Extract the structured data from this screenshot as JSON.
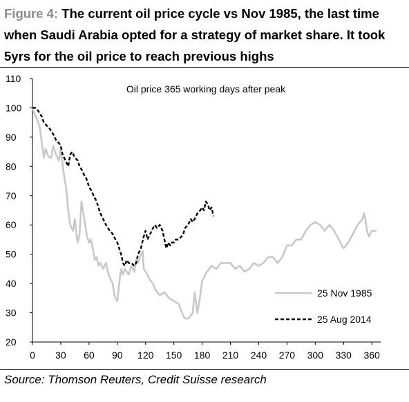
{
  "figure": {
    "label": "Figure 4:",
    "title": "The current oil price cycle vs Nov 1985, the last time when Saudi Arabia opted for a strategy of market share. It took 5yrs for the oil price to reach previous highs",
    "source": "Source: Thomson Reuters, Credit Suisse research"
  },
  "colors": {
    "series_1985": "#c8c8c8",
    "series_2014": "#000000",
    "title_label": "#8c8c8c"
  },
  "chart_data": {
    "type": "line",
    "title": "Oil price 365 working days after peak",
    "xlim": [
      0,
      365
    ],
    "ylim": [
      20,
      110
    ],
    "x_ticks": [
      0,
      30,
      60,
      90,
      120,
      150,
      180,
      210,
      240,
      270,
      300,
      330,
      360
    ],
    "y_ticks": [
      20,
      30,
      40,
      50,
      60,
      70,
      80,
      90,
      100,
      110
    ],
    "grid": false,
    "legend_position": "bottom-right",
    "series": [
      {
        "name": "25 Nov 1985",
        "style": "solid",
        "x": [
          0,
          2,
          5,
          8,
          10,
          12,
          14,
          16,
          18,
          20,
          22,
          25,
          28,
          30,
          33,
          36,
          38,
          40,
          43,
          45,
          47,
          48,
          50,
          52,
          55,
          57,
          58,
          60,
          62,
          64,
          66,
          68,
          70,
          72,
          75,
          78,
          80,
          82,
          85,
          87,
          88,
          90,
          92,
          94,
          96,
          98,
          100,
          102,
          105,
          108,
          110,
          112,
          115,
          117,
          118,
          120,
          122,
          125,
          128,
          130,
          135,
          140,
          145,
          150,
          155,
          160,
          162,
          165,
          168,
          170,
          172,
          175,
          178,
          180,
          182,
          185,
          190,
          195,
          200,
          205,
          210,
          215,
          220,
          225,
          230,
          235,
          240,
          245,
          250,
          255,
          260,
          265,
          270,
          275,
          280,
          285,
          290,
          295,
          300,
          305,
          310,
          315,
          320,
          325,
          330,
          335,
          340,
          345,
          350,
          352,
          355,
          357,
          360,
          365
        ],
        "y": [
          100,
          98,
          96,
          93,
          88,
          83,
          86,
          84,
          83,
          83,
          87,
          84,
          82,
          86,
          78,
          72,
          65,
          60,
          58,
          62,
          56,
          54,
          57,
          68,
          62,
          58,
          56,
          54,
          55,
          52,
          48,
          49,
          46,
          47,
          45,
          47,
          44,
          42,
          40,
          36,
          35,
          34,
          40,
          45,
          43,
          45,
          44,
          43,
          46,
          44,
          48,
          47,
          50,
          51,
          45,
          44,
          43,
          41,
          40,
          38,
          36,
          37,
          35,
          34,
          33,
          29,
          28,
          28,
          29,
          30,
          37,
          30,
          36,
          41,
          42,
          44,
          46,
          45,
          47,
          47,
          47,
          45,
          46,
          44,
          45,
          47,
          46,
          47,
          49,
          49,
          47,
          49,
          53,
          53,
          55,
          55,
          58,
          60,
          61,
          60,
          58,
          60,
          58,
          55,
          52,
          54,
          57,
          60,
          62,
          64,
          58,
          56,
          58,
          58
        ]
      },
      {
        "name": "25 Aug 2014",
        "style": "dashed",
        "x": [
          0,
          3,
          6,
          8,
          10,
          12,
          15,
          18,
          20,
          22,
          25,
          28,
          30,
          32,
          35,
          38,
          40,
          42,
          45,
          48,
          50,
          52,
          55,
          57,
          60,
          62,
          65,
          68,
          70,
          72,
          75,
          78,
          80,
          82,
          85,
          88,
          90,
          92,
          94,
          96,
          98,
          100,
          102,
          105,
          108,
          110,
          112,
          115,
          118,
          120,
          122,
          125,
          128,
          130,
          132,
          135,
          138,
          140,
          142,
          144,
          146,
          148,
          150,
          152,
          155,
          158,
          160,
          162,
          165,
          168,
          170,
          172,
          175,
          178,
          180,
          182,
          184,
          186,
          188,
          190,
          192
        ],
        "y": [
          100,
          100,
          99,
          98,
          97,
          95,
          94,
          93,
          92,
          91,
          89,
          88,
          87,
          84,
          82,
          80,
          84,
          85,
          83,
          82,
          80,
          79,
          77,
          76,
          73,
          72,
          70,
          68,
          66,
          64,
          62,
          60,
          59,
          58,
          57,
          55,
          54,
          52,
          50,
          47,
          46,
          48,
          47,
          47,
          46,
          47,
          50,
          52,
          56,
          58,
          55,
          57,
          59,
          60,
          59,
          60,
          58,
          55,
          52,
          54,
          53,
          54,
          54,
          55,
          55,
          56,
          57,
          59,
          60,
          62,
          61,
          62,
          64,
          65,
          66,
          65,
          68,
          67,
          65,
          66,
          63
        ]
      }
    ]
  }
}
